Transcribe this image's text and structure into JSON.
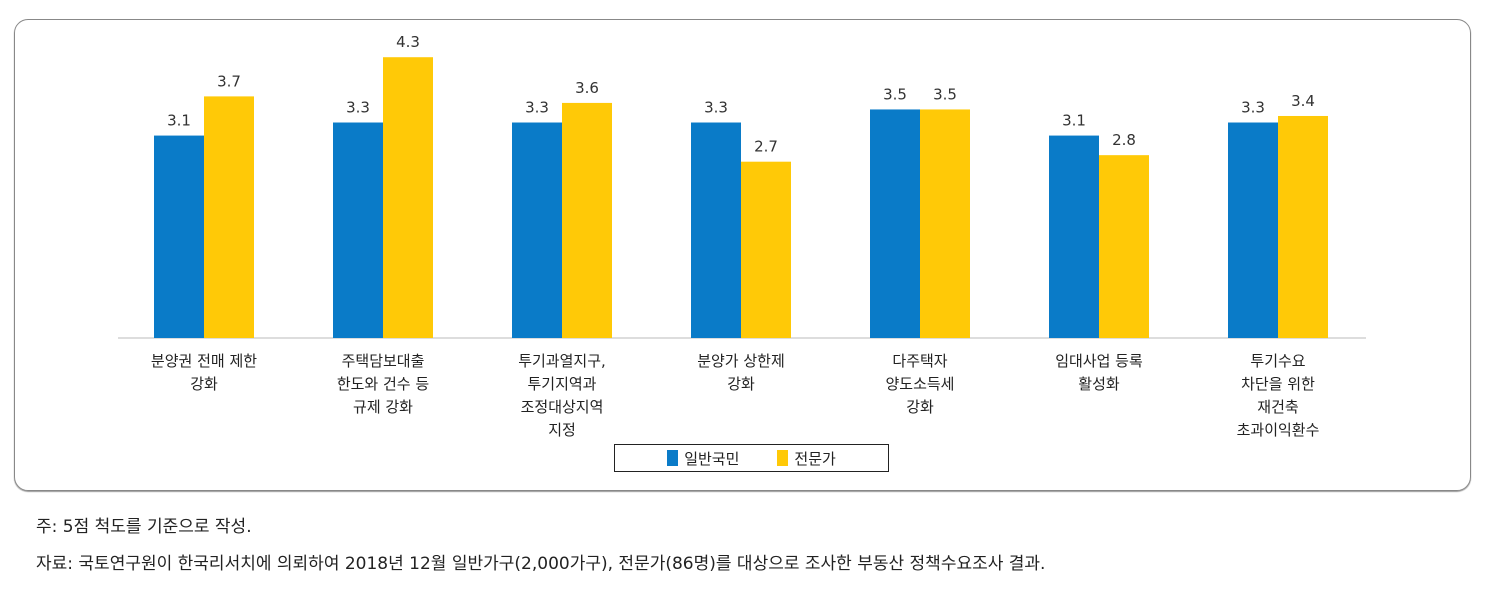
{
  "chart_data": {
    "type": "bar",
    "categories": [
      [
        "분양권 전매 제한",
        "강화"
      ],
      [
        "주택담보대출",
        "한도와 건수 등",
        "규제 강화"
      ],
      [
        "투기과열지구,",
        "투기지역과",
        "조정대상지역",
        "지정"
      ],
      [
        "분양가 상한제",
        "강화"
      ],
      [
        "다주택자",
        "양도소득세",
        "강화"
      ],
      [
        "임대사업 등록",
        "활성화"
      ],
      [
        "투기수요",
        "차단을 위한",
        "재건축",
        "초과이익환수"
      ]
    ],
    "series": [
      {
        "name": "일반국민",
        "color": "#0a7bc8",
        "values": [
          3.1,
          3.3,
          3.3,
          3.3,
          3.5,
          3.1,
          3.3
        ]
      },
      {
        "name": "전문가",
        "color": "#ffc907",
        "values": [
          3.7,
          4.3,
          3.6,
          2.7,
          3.5,
          2.8,
          3.4
        ]
      }
    ],
    "ylim": [
      0,
      5
    ],
    "legend": "bottom"
  },
  "notes": {
    "note": "주: 5점 척도를 기준으로 작성.",
    "source": "자료: 국토연구원이 한국리서치에 의뢰하여 2018년 12월 일반가구(2,000가구), 전문가(86명)를 대상으로 조사한 부동산 정책수요조사 결과."
  }
}
